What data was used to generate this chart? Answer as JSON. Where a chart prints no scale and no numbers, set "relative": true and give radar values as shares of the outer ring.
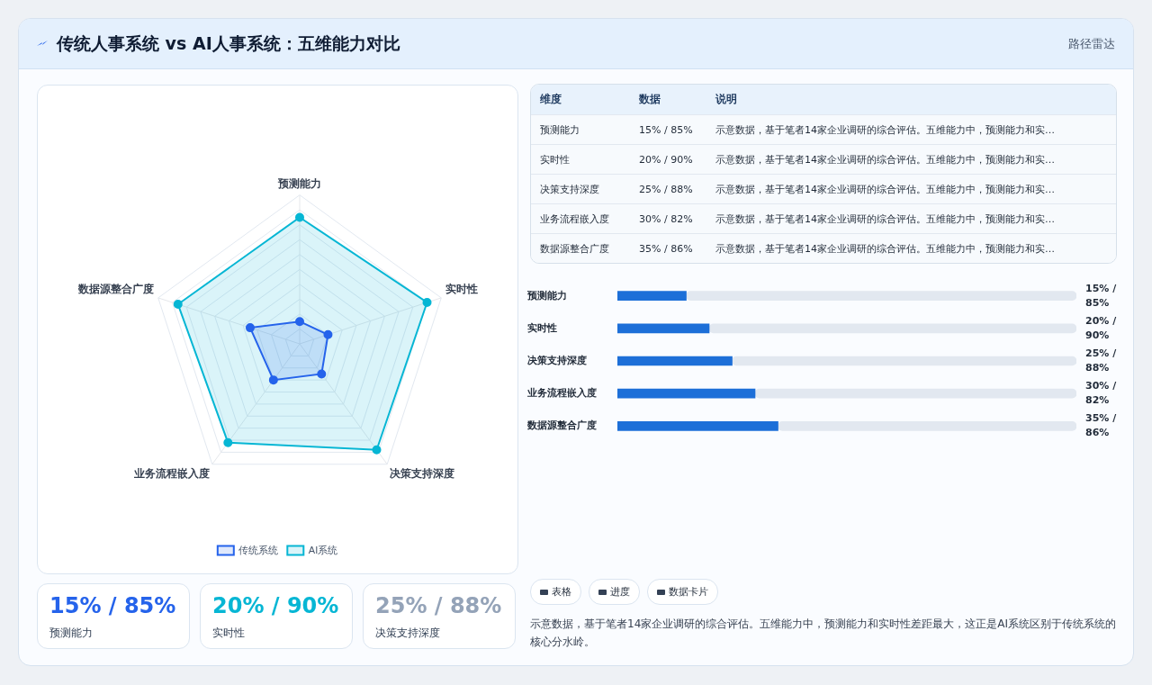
{
  "chart_data": [
    {
      "type": "radar",
      "title": "传统人事系统 vs AI人事系统：五维能力对比",
      "categories": [
        "预测能力",
        "实时性",
        "决策支持深度",
        "业务流程嵌入度",
        "数据源整合广度"
      ],
      "series": [
        {
          "name": "传统系统",
          "color": "#2563eb",
          "values": [
            0.15,
            0.2,
            0.25,
            0.3,
            0.35
          ]
        },
        {
          "name": "AI系统",
          "color": "#06b6d4",
          "values": [
            0.85,
            0.9,
            0.88,
            0.82,
            0.86
          ]
        }
      ],
      "relative": true,
      "grid": true,
      "legend": "bottom",
      "marker": "circle",
      "annotations": [
        "示意数据，基于笔者14家企业调研的综合评估。五维能力中，预测能力和实时性差距最大，这正是AI系统区别于传统系统的核心分水岭。"
      ]
    },
    {
      "type": "other",
      "annotations": [
        "维度",
        "数据",
        "说明",
        "表格",
        "进度",
        "数据卡片",
        "路径雷达",
        "示意数据，基于笔者14家企业调研的综合评估。五维能力中，预测能力和实…"
      ]
    },
    {
      "type": "bar",
      "orientation": "horizontal",
      "categories": [
        "预测能力",
        "实时性",
        "决策支持深度",
        "业务流程嵌入度",
        "数据源整合广度"
      ],
      "series": [
        {
          "color": "#1d6fd8",
          "values": [
            15,
            20,
            25,
            30,
            35
          ],
          "value_labels": [
            "15% / 85%",
            "20% / 90%",
            "25% / 88%",
            "30% / 82%",
            "35% / 86%"
          ]
        },
        {
          "color": "#e2e8f0",
          "values": [
            85,
            80,
            75,
            70,
            65
          ]
        }
      ],
      "stacked": true,
      "xlim": [
        0,
        100
      ],
      "tick_labels": "y"
    }
  ]
}
